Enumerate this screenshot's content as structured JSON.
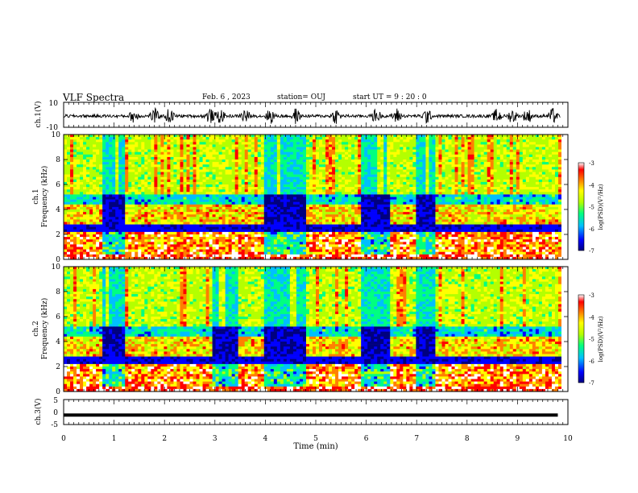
{
  "header": {
    "title": "VLF Spectra",
    "date": "Feb. 6 , 2023",
    "station": "station= OUJ",
    "start": "start  UT =  9 : 20 : 0"
  },
  "chart_data": [
    {
      "type": "line",
      "panel": "ch1-waveform",
      "ylabel": "ch.1(V)",
      "ylim": [
        -10,
        10
      ],
      "y_ticks": [
        "10",
        "-10"
      ],
      "xlim": [
        0,
        10
      ],
      "description_series": "ch.1 voltage waveform, about -1 V baseline, bursts up to about ±8 V"
    },
    {
      "type": "heatmap",
      "panel": "ch1-spectrogram",
      "ylabel_line1": "ch.1",
      "ylabel_line2": "Frequency (kHz)",
      "ylim": [
        0,
        10
      ],
      "y_ticks": [
        "0",
        "2",
        "4",
        "6",
        "8",
        "10"
      ],
      "xlim": [
        0,
        10
      ],
      "colorbar": {
        "label": "log(PSD)(V²/Hz)",
        "range": [
          -7,
          -3
        ],
        "ticks": [
          "-3",
          "-4",
          "-5",
          "-6",
          "-7"
        ],
        "colors": [
          "#00007f",
          "#0000ff",
          "#00bfff",
          "#00ff80",
          "#b4ff00",
          "#ffff00",
          "#ff8000",
          "#ff0000",
          "#ffffff"
        ]
      }
    },
    {
      "type": "heatmap",
      "panel": "ch2-spectrogram",
      "ylabel_line1": "ch.2",
      "ylabel_line2": "Frequency (kHz)",
      "ylim": [
        0,
        10
      ],
      "y_ticks": [
        "0",
        "2",
        "4",
        "6",
        "8",
        "10"
      ],
      "xlim": [
        0,
        10
      ],
      "colorbar": {
        "label": "log(PSD)(V²/Hz)",
        "range": [
          -7,
          -3
        ],
        "ticks": [
          "-3",
          "-4",
          "-5",
          "-6",
          "-7"
        ],
        "colors": [
          "#00007f",
          "#0000ff",
          "#00bfff",
          "#00ff80",
          "#b4ff00",
          "#ffff00",
          "#ff8000",
          "#ff0000",
          "#ffffff"
        ]
      }
    },
    {
      "type": "line",
      "panel": "ch3-waveform",
      "ylabel": "ch.3(V)",
      "ylim": [
        -5,
        5
      ],
      "y_ticks": [
        "5",
        "0",
        "-5"
      ],
      "xlim": [
        0,
        10
      ],
      "series": [
        {
          "x": [
            0,
            9.8
          ],
          "y": [
            -1.2,
            -1.2
          ]
        }
      ]
    }
  ],
  "x_axis": {
    "label": "Time  (min)",
    "ticks": [
      "0",
      "1",
      "2",
      "3",
      "4",
      "5",
      "6",
      "7",
      "8",
      "9",
      "10"
    ]
  }
}
